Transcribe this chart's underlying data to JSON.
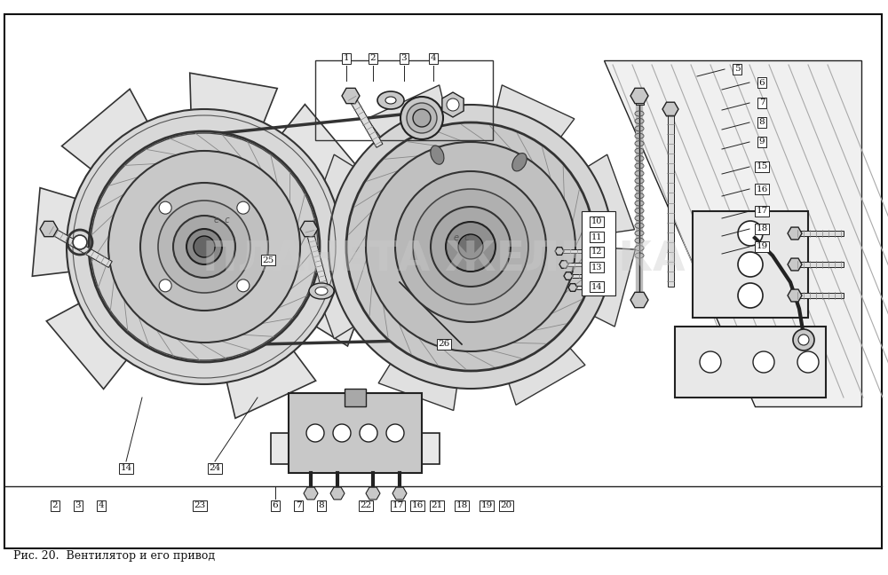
{
  "caption": "Рис. 20.  Вентилятор и его привод",
  "caption_fontsize": 9,
  "bg_color": "#ffffff",
  "fig_width": 10.0,
  "fig_height": 6.48,
  "dpi": 100,
  "watermark_text": "ПЛАНЕТА ЖЕЛЕЗКА",
  "watermark_color": "#cccccc",
  "watermark_fontsize": 34,
  "watermark_alpha": 0.4,
  "annotation_fontsize": 7.5,
  "lc": "#222222",
  "fc_light": "#e8e8e8",
  "fc_mid": "#c8c8c8",
  "fc_dark": "#a8a8a8"
}
